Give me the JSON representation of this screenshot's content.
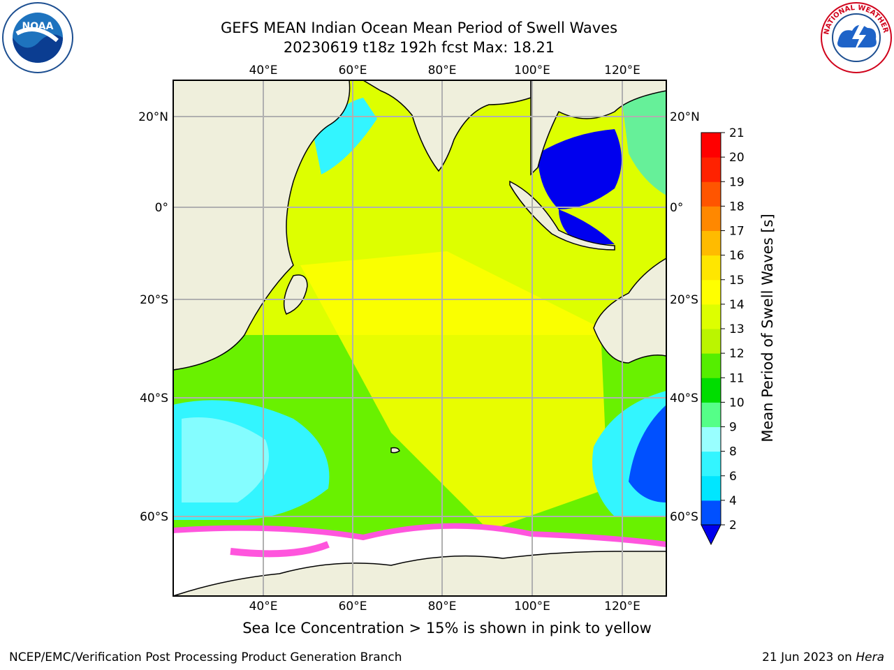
{
  "header": {
    "title_line1": "GEFS MEAN Indian Ocean Mean Period of Swell Waves",
    "title_line2": "20230619 t18z 192h fcst   Max: 18.21"
  },
  "logos": {
    "left": {
      "name": "noaa-logo",
      "text": "NOAA"
    },
    "right": {
      "name": "nws-logo",
      "text": "NATIONAL WEATHER SERVICE"
    }
  },
  "map": {
    "lon_labels": [
      "40°E",
      "60°E",
      "80°E",
      "100°E",
      "120°E"
    ],
    "lat_labels": [
      "20°N",
      "0°",
      "20°S",
      "40°S",
      "60°S"
    ],
    "colors": {
      "land": "#efefdc",
      "ice": "#ffffff",
      "ice_edge": "#ff55dd",
      "grid": "#b0b0b0"
    }
  },
  "colorbar": {
    "label": "Mean Period of Swell Waves [s]",
    "ticks": [
      "2",
      "4",
      "6",
      "8",
      "9",
      "10",
      "11",
      "12",
      "13",
      "14",
      "15",
      "16",
      "17",
      "18",
      "19",
      "20",
      "21"
    ],
    "colors": [
      "#0050ff",
      "#00e6ff",
      "#33f5ff",
      "#99ffff",
      "#55ff88",
      "#00dd00",
      "#55ee00",
      "#bbf500",
      "#ddff00",
      "#ffff00",
      "#ffe600",
      "#ffbb00",
      "#ff8800",
      "#ff5500",
      "#ff2200",
      "#ff0000"
    ],
    "under_color": "#0000ee"
  },
  "caption": "Sea Ice Concentration > 15% is shown in pink to yellow",
  "footer": {
    "left": "NCEP/EMC/Verification Post Processing Product Generation Branch",
    "right_date": "21 Jun 2023 on ",
    "right_host": "Hera"
  }
}
